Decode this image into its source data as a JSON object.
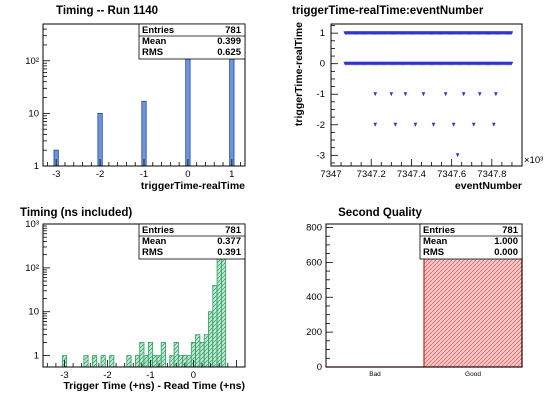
{
  "chart_data": [
    {
      "type": "bar",
      "title": "Timing -- Run 1140",
      "xlabel": "triggerTime-realTime",
      "ylabel": "",
      "log_y": true,
      "xlim": [
        -3.3,
        1.3
      ],
      "ylim": [
        1,
        500
      ],
      "x_ticks": [
        "-3",
        "-2",
        "-1",
        "0",
        "1"
      ],
      "y_ticks": [
        "1",
        "10",
        "10²"
      ],
      "bin_width": 0.1,
      "bars": [
        {
          "x": -3,
          "value": 2
        },
        {
          "x": -2,
          "value": 10
        },
        {
          "x": -1,
          "value": 17
        },
        {
          "x": 0,
          "value": 400
        },
        {
          "x": 1,
          "value": 350
        }
      ],
      "fill_color": "#6e96d6",
      "edge_color": "#1f3fb0",
      "stats": [
        {
          "label": "Entries",
          "value": "781"
        },
        {
          "label": "Mean",
          "value": "0.399"
        },
        {
          "label": "RMS",
          "value": "0.625"
        }
      ]
    },
    {
      "type": "scatter",
      "title": "triggerTime-realTime:eventNumber",
      "xlabel": "eventNumber",
      "ylabel": "triggerTime-realTime",
      "x_multiplier": "×10³",
      "xlim": [
        7347,
        7347.95
      ],
      "ylim": [
        -3.35,
        1.3
      ],
      "x_ticks": [
        "7347",
        "7347.2",
        "7347.4",
        "7347.6",
        "7347.8"
      ],
      "y_ticks": [
        "-3",
        "-2",
        "-1",
        "0",
        "1"
      ],
      "marker_color": "#3333cc",
      "bands": [
        {
          "y": 1,
          "x_range": [
            7347.07,
            7347.9
          ]
        },
        {
          "y": 0,
          "x_range": [
            7347.07,
            7347.9
          ]
        }
      ],
      "points": [
        {
          "x": 7347.22,
          "y": -1
        },
        {
          "x": 7347.3,
          "y": -1
        },
        {
          "x": 7347.37,
          "y": -1
        },
        {
          "x": 7347.46,
          "y": -1
        },
        {
          "x": 7347.57,
          "y": -1
        },
        {
          "x": 7347.66,
          "y": -1
        },
        {
          "x": 7347.74,
          "y": -1
        },
        {
          "x": 7347.82,
          "y": -1
        },
        {
          "x": 7347.22,
          "y": -2
        },
        {
          "x": 7347.32,
          "y": -2
        },
        {
          "x": 7347.42,
          "y": -2
        },
        {
          "x": 7347.51,
          "y": -2
        },
        {
          "x": 7347.61,
          "y": -2
        },
        {
          "x": 7347.71,
          "y": -2
        },
        {
          "x": 7347.81,
          "y": -2
        },
        {
          "x": 7347.63,
          "y": -3
        }
      ]
    },
    {
      "type": "bar",
      "title": "Timing (ns included)",
      "xlabel": "Trigger Time (+ns) - Read Time (+ns)",
      "ylabel": "",
      "log_y": true,
      "xlim": [
        -3.5,
        1.2
      ],
      "ylim": [
        0.55,
        1000
      ],
      "x_ticks": [
        "-3",
        "-2",
        "-1",
        "0",
        "1"
      ],
      "y_ticks": [
        "1",
        "10",
        "10²",
        "10³"
      ],
      "bin_width": 0.1,
      "fill_color": "#a9dcc3",
      "edge_color": "#2e9e64",
      "bars": [
        {
          "x": -3.0,
          "value": 1
        },
        {
          "x": -2.5,
          "value": 1
        },
        {
          "x": -2.3,
          "value": 1
        },
        {
          "x": -2.1,
          "value": 1
        },
        {
          "x": -1.9,
          "value": 1
        },
        {
          "x": -1.5,
          "value": 1
        },
        {
          "x": -1.3,
          "value": 1
        },
        {
          "x": -1.2,
          "value": 2
        },
        {
          "x": -1.1,
          "value": 1
        },
        {
          "x": -1.0,
          "value": 2
        },
        {
          "x": -0.9,
          "value": 1
        },
        {
          "x": -0.8,
          "value": 1
        },
        {
          "x": -0.7,
          "value": 2
        },
        {
          "x": -0.5,
          "value": 1
        },
        {
          "x": -0.4,
          "value": 2
        },
        {
          "x": -0.3,
          "value": 1
        },
        {
          "x": -0.2,
          "value": 1
        },
        {
          "x": -0.1,
          "value": 1
        },
        {
          "x": 0.0,
          "value": 2
        },
        {
          "x": 0.1,
          "value": 3
        },
        {
          "x": 0.2,
          "value": 2
        },
        {
          "x": 0.3,
          "value": 3
        },
        {
          "x": 0.4,
          "value": 10
        },
        {
          "x": 0.5,
          "value": 40
        },
        {
          "x": 0.6,
          "value": 350
        },
        {
          "x": 0.7,
          "value": 250
        }
      ],
      "stats": [
        {
          "label": "Entries",
          "value": "781"
        },
        {
          "label": "Mean",
          "value": "0.377"
        },
        {
          "label": "RMS",
          "value": "0.391"
        }
      ]
    },
    {
      "type": "bar",
      "title": "Second Quality",
      "xlabel": "",
      "ylabel": "",
      "categories": [
        "Bad",
        "Good"
      ],
      "values": [
        0,
        781
      ],
      "ylim": [
        0,
        820
      ],
      "y_ticks": [
        "0",
        "200",
        "400",
        "600",
        "800"
      ],
      "fill_color": "#f2b3b3",
      "edge_color": "#cc2222",
      "stats": [
        {
          "label": "Entries",
          "value": "781"
        },
        {
          "label": "Mean",
          "value": "1.000"
        },
        {
          "label": "RMS",
          "value": "0.000"
        }
      ]
    }
  ]
}
